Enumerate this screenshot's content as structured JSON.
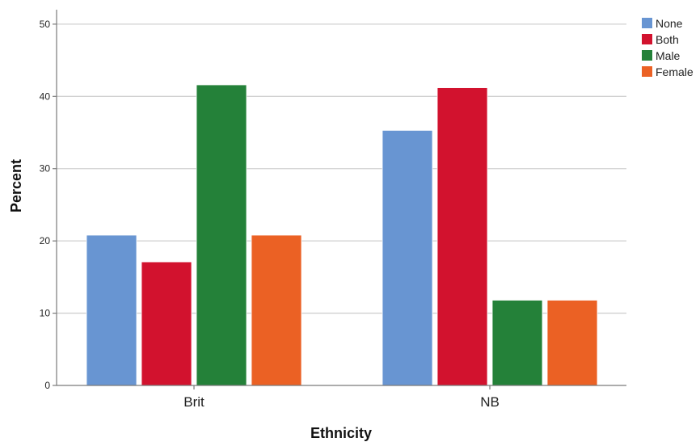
{
  "chart_data": {
    "type": "bar",
    "categories": [
      "Brit",
      "NB"
    ],
    "series": [
      {
        "name": "None",
        "color": "#6895d2",
        "values": [
          20.8,
          35.3
        ]
      },
      {
        "name": "Both",
        "color": "#d2122e",
        "values": [
          17.1,
          41.2
        ]
      },
      {
        "name": "Male",
        "color": "#248139",
        "values": [
          41.6,
          11.8
        ]
      },
      {
        "name": "Female",
        "color": "#eb6124",
        "values": [
          20.8,
          11.8
        ]
      }
    ],
    "xlabel": "Ethnicity",
    "ylabel": "Percent",
    "ylim": [
      0,
      52
    ],
    "yticks": [
      0,
      10,
      20,
      30,
      40,
      50
    ],
    "grid": true,
    "legend_position": "top-right"
  }
}
